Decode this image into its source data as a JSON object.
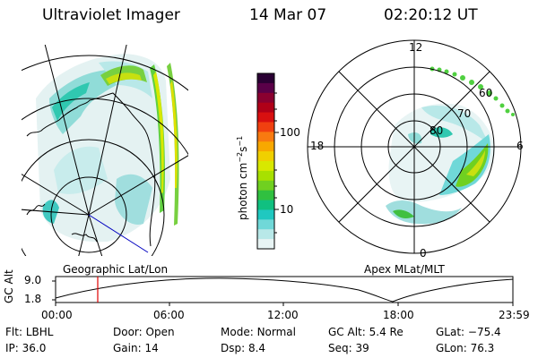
{
  "header": {
    "title": "Ultraviolet Imager",
    "date": "14 Mar 07",
    "time": "02:20:12 UT"
  },
  "left_panel": {
    "label": "Geographic Lat/Lon"
  },
  "right_panel": {
    "label": "Apex MLat/MLT",
    "mlt_labels": [
      "12",
      "18",
      "6",
      "0"
    ],
    "lat_labels": [
      "60",
      "70",
      "80"
    ]
  },
  "colorbar": {
    "unit_main": "photon cm",
    "unit_exp1": "−2",
    "unit_mid": "s",
    "unit_exp2": "−1",
    "scale": "log",
    "ticks": [
      "100",
      "10"
    ],
    "colors": [
      "#2a0033",
      "#5a0048",
      "#8a0030",
      "#b00018",
      "#d81010",
      "#f04010",
      "#f87a10",
      "#f8a800",
      "#f0d000",
      "#d8e800",
      "#a8e000",
      "#70d020",
      "#30c040",
      "#10c080",
      "#20c8c0",
      "#70d8d8",
      "#b8e8e8",
      "#e8f4f4"
    ]
  },
  "altitude_plot": {
    "ylabel": "GC Alt",
    "yticks": [
      "9.0",
      "1.8"
    ],
    "xticks": [
      "00:00",
      "06:00",
      "12:00",
      "18:00",
      "23:59"
    ],
    "cursor_time": "02:20"
  },
  "info": {
    "row1": [
      {
        "label": "Flt:",
        "value": "LBHL"
      },
      {
        "label": "Door:",
        "value": "Open"
      },
      {
        "label": "Mode:",
        "value": "Normal"
      },
      {
        "label": "GC Alt:",
        "value": "5.4 Re"
      },
      {
        "label": "GLat:",
        "value": "−75.4"
      }
    ],
    "row2": [
      {
        "label": "IP:",
        "value": "36.0"
      },
      {
        "label": "Gain:",
        "value": "14"
      },
      {
        "label": "Dsp:",
        "value": "8.4"
      },
      {
        "label": "Seq:",
        "value": "39"
      },
      {
        "label": "GLon:",
        "value": "76.3"
      }
    ]
  }
}
